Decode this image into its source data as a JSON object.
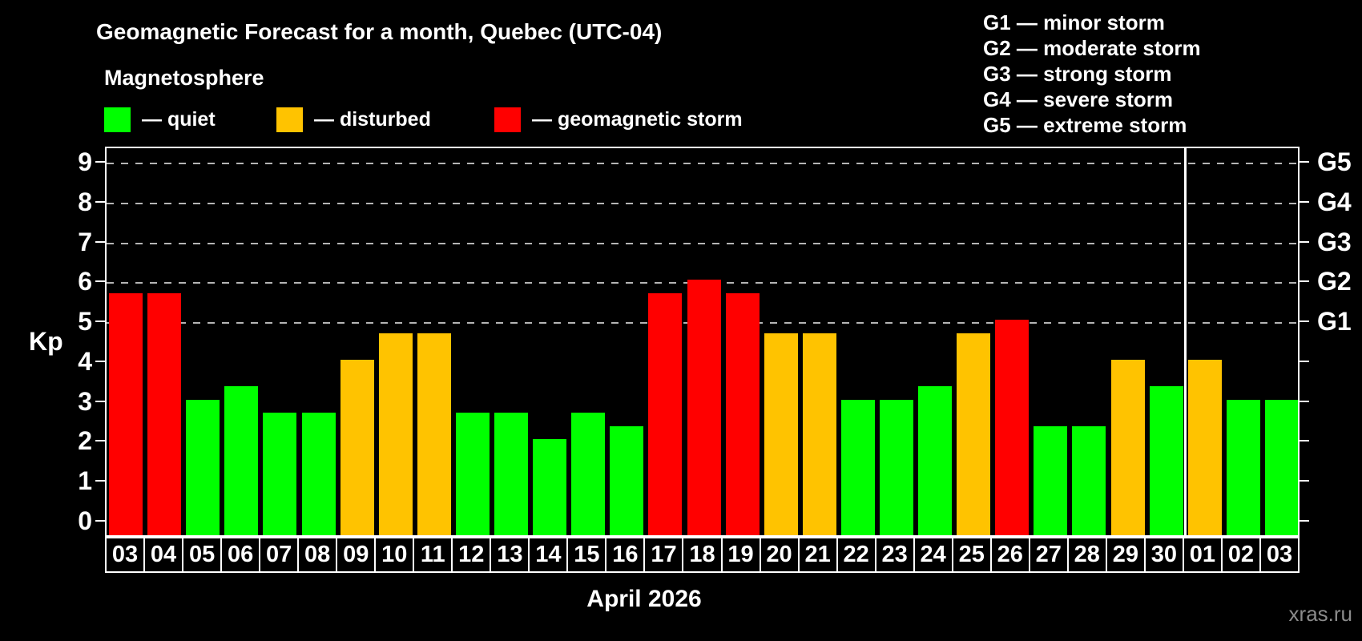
{
  "title": "Geomagnetic Forecast for a month, Quebec (UTC-04)",
  "subtitle": "Magnetosphere",
  "legend": {
    "items": [
      {
        "label": "— quiet",
        "status": "quiet"
      },
      {
        "label": "— disturbed",
        "status": "disturbed"
      },
      {
        "label": "— geomagnetic storm",
        "status": "storm"
      }
    ]
  },
  "storm_scale_legend": [
    "G1 — minor storm",
    "G2 — moderate storm",
    "G3 — strong storm",
    "G4 — severe storm",
    "G5 — extreme storm"
  ],
  "watermark": "xras.ru",
  "colors": {
    "quiet": "#00ff00",
    "disturbed": "#ffc300",
    "storm": "#ff0000",
    "gridline": "#b5b5b5",
    "watermark": "#8c8c8c",
    "axis": "#ffffff"
  },
  "chart_data": {
    "type": "bar",
    "title": "Geomagnetic Forecast for a month, Quebec (UTC-04)",
    "ylabel": "Kp",
    "xlabel": "April 2026",
    "ylim": [
      0,
      9
    ],
    "yticks": [
      0,
      1,
      2,
      3,
      4,
      5,
      6,
      7,
      8,
      9
    ],
    "gridlines_at_kp": [
      5,
      6,
      7,
      8,
      9
    ],
    "grid_style": "dashed",
    "right_axis_labels": [
      {
        "kp": 5,
        "label": "G1"
      },
      {
        "kp": 6,
        "label": "G2"
      },
      {
        "kp": 7,
        "label": "G3"
      },
      {
        "kp": 8,
        "label": "G4"
      },
      {
        "kp": 9,
        "label": "G5"
      }
    ],
    "month_separator_after_index": 27,
    "categories": [
      "03",
      "04",
      "05",
      "06",
      "07",
      "08",
      "09",
      "10",
      "11",
      "12",
      "13",
      "14",
      "15",
      "16",
      "17",
      "18",
      "19",
      "20",
      "21",
      "22",
      "23",
      "24",
      "25",
      "26",
      "27",
      "28",
      "29",
      "30",
      "01",
      "02",
      "03"
    ],
    "bars": [
      {
        "day": "03",
        "kp": 5.67,
        "status": "storm"
      },
      {
        "day": "04",
        "kp": 5.67,
        "status": "storm"
      },
      {
        "day": "05",
        "kp": 3.0,
        "status": "quiet"
      },
      {
        "day": "06",
        "kp": 3.33,
        "status": "quiet"
      },
      {
        "day": "07",
        "kp": 2.67,
        "status": "quiet"
      },
      {
        "day": "08",
        "kp": 2.67,
        "status": "quiet"
      },
      {
        "day": "09",
        "kp": 4.0,
        "status": "disturbed"
      },
      {
        "day": "10",
        "kp": 4.67,
        "status": "disturbed"
      },
      {
        "day": "11",
        "kp": 4.67,
        "status": "disturbed"
      },
      {
        "day": "12",
        "kp": 2.67,
        "status": "quiet"
      },
      {
        "day": "13",
        "kp": 2.67,
        "status": "quiet"
      },
      {
        "day": "14",
        "kp": 2.0,
        "status": "quiet"
      },
      {
        "day": "15",
        "kp": 2.67,
        "status": "quiet"
      },
      {
        "day": "16",
        "kp": 2.33,
        "status": "quiet"
      },
      {
        "day": "17",
        "kp": 5.67,
        "status": "storm"
      },
      {
        "day": "18",
        "kp": 6.0,
        "status": "storm"
      },
      {
        "day": "19",
        "kp": 5.67,
        "status": "storm"
      },
      {
        "day": "20",
        "kp": 4.67,
        "status": "disturbed"
      },
      {
        "day": "21",
        "kp": 4.67,
        "status": "disturbed"
      },
      {
        "day": "22",
        "kp": 3.0,
        "status": "quiet"
      },
      {
        "day": "23",
        "kp": 3.0,
        "status": "quiet"
      },
      {
        "day": "24",
        "kp": 3.33,
        "status": "quiet"
      },
      {
        "day": "25",
        "kp": 4.67,
        "status": "disturbed"
      },
      {
        "day": "26",
        "kp": 5.0,
        "status": "storm"
      },
      {
        "day": "27",
        "kp": 2.33,
        "status": "quiet"
      },
      {
        "day": "28",
        "kp": 2.33,
        "status": "quiet"
      },
      {
        "day": "29",
        "kp": 4.0,
        "status": "disturbed"
      },
      {
        "day": "30",
        "kp": 3.33,
        "status": "quiet"
      },
      {
        "day": "01",
        "kp": 4.0,
        "status": "disturbed"
      },
      {
        "day": "02",
        "kp": 3.0,
        "status": "quiet"
      },
      {
        "day": "03",
        "kp": 3.0,
        "status": "quiet"
      }
    ]
  }
}
